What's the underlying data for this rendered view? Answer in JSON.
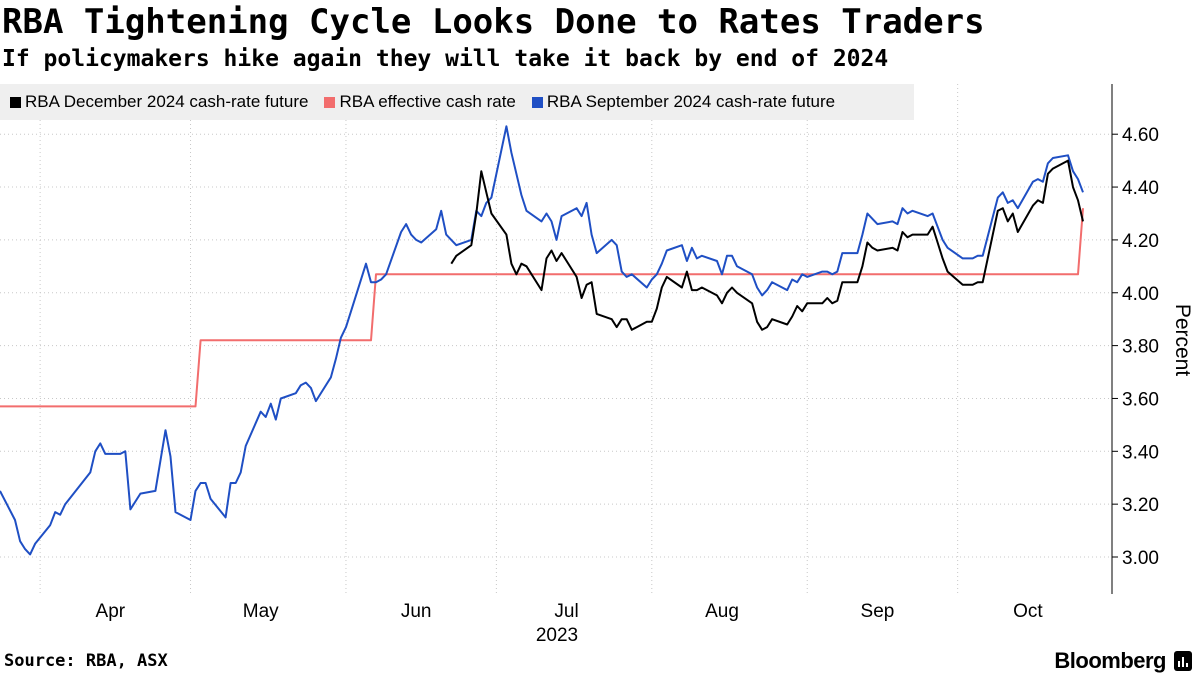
{
  "header": {
    "title": "RBA Tightening Cycle Looks Done to Rates Traders",
    "subtitle": "If policymakers hike again they will take it back by end of 2024"
  },
  "footer": {
    "source": "Source: RBA, ASX",
    "brand": "Bloomberg"
  },
  "colors": {
    "dec2024": "#000000",
    "effective": "#f26d6d",
    "sep2024": "#1f4fc4",
    "grid": "#c8c8c8",
    "legend_bg": "#efefef"
  },
  "chart_data": {
    "type": "line",
    "title": "RBA Tightening Cycle Looks Done to Rates Traders",
    "subtitle": "If policymakers hike again they will take it back by end of 2024",
    "xlabel": "2023",
    "ylabel": "Percent",
    "ylim": [
      2.86,
      4.79
    ],
    "yticks": [
      "3.00",
      "3.20",
      "3.40",
      "3.60",
      "3.80",
      "4.00",
      "4.20",
      "4.40",
      "4.60"
    ],
    "ytick_values": [
      3.0,
      3.2,
      3.4,
      3.6,
      3.8,
      4.0,
      4.2,
      4.4,
      4.6
    ],
    "x_start": "2023-03-24",
    "x_end": "2023-10-26",
    "month_labels": [
      {
        "label": "Apr",
        "date": "2023-04-15"
      },
      {
        "label": "May",
        "date": "2023-05-15"
      },
      {
        "label": "Jun",
        "date": "2023-06-15"
      },
      {
        "label": "Jul",
        "date": "2023-07-15"
      },
      {
        "label": "Aug",
        "date": "2023-08-15"
      },
      {
        "label": "Sep",
        "date": "2023-09-15"
      },
      {
        "label": "Oct",
        "date": "2023-10-15"
      }
    ],
    "month_boundaries": [
      "2023-04-01",
      "2023-05-01",
      "2023-06-01",
      "2023-07-01",
      "2023-08-01",
      "2023-09-01",
      "2023-10-01"
    ],
    "year_label": "2023",
    "grid": true,
    "legend_position": "top",
    "series": [
      {
        "key": "dec2024",
        "name": "RBA December 2024 cash-rate future",
        "points": [
          [
            "2023-06-22",
            4.11
          ],
          [
            "2023-06-23",
            4.14
          ],
          [
            "2023-06-26",
            4.18
          ],
          [
            "2023-06-27",
            4.3
          ],
          [
            "2023-06-28",
            4.46
          ],
          [
            "2023-06-29",
            4.38
          ],
          [
            "2023-06-30",
            4.3
          ],
          [
            "2023-07-03",
            4.22
          ],
          [
            "2023-07-04",
            4.11
          ],
          [
            "2023-07-05",
            4.07
          ],
          [
            "2023-07-06",
            4.11
          ],
          [
            "2023-07-07",
            4.1
          ],
          [
            "2023-07-10",
            4.01
          ],
          [
            "2023-07-11",
            4.13
          ],
          [
            "2023-07-12",
            4.16
          ],
          [
            "2023-07-13",
            4.12
          ],
          [
            "2023-07-14",
            4.15
          ],
          [
            "2023-07-17",
            4.06
          ],
          [
            "2023-07-18",
            3.98
          ],
          [
            "2023-07-19",
            4.03
          ],
          [
            "2023-07-20",
            4.04
          ],
          [
            "2023-07-21",
            3.92
          ],
          [
            "2023-07-24",
            3.9
          ],
          [
            "2023-07-25",
            3.87
          ],
          [
            "2023-07-26",
            3.9
          ],
          [
            "2023-07-27",
            3.9
          ],
          [
            "2023-07-28",
            3.86
          ],
          [
            "2023-07-31",
            3.89
          ],
          [
            "2023-08-01",
            3.89
          ],
          [
            "2023-08-02",
            3.94
          ],
          [
            "2023-08-03",
            4.02
          ],
          [
            "2023-08-04",
            4.06
          ],
          [
            "2023-08-07",
            4.02
          ],
          [
            "2023-08-08",
            4.08
          ],
          [
            "2023-08-09",
            4.01
          ],
          [
            "2023-08-10",
            4.01
          ],
          [
            "2023-08-11",
            4.02
          ],
          [
            "2023-08-14",
            3.99
          ],
          [
            "2023-08-15",
            3.96
          ],
          [
            "2023-08-16",
            4.0
          ],
          [
            "2023-08-17",
            4.02
          ],
          [
            "2023-08-18",
            4.0
          ],
          [
            "2023-08-21",
            3.96
          ],
          [
            "2023-08-22",
            3.89
          ],
          [
            "2023-08-23",
            3.86
          ],
          [
            "2023-08-24",
            3.87
          ],
          [
            "2023-08-25",
            3.9
          ],
          [
            "2023-08-28",
            3.88
          ],
          [
            "2023-08-29",
            3.91
          ],
          [
            "2023-08-30",
            3.95
          ],
          [
            "2023-08-31",
            3.93
          ],
          [
            "2023-09-01",
            3.96
          ],
          [
            "2023-09-04",
            3.96
          ],
          [
            "2023-09-05",
            3.98
          ],
          [
            "2023-09-06",
            3.96
          ],
          [
            "2023-09-07",
            3.97
          ],
          [
            "2023-09-08",
            4.04
          ],
          [
            "2023-09-11",
            4.04
          ],
          [
            "2023-09-12",
            4.1
          ],
          [
            "2023-09-13",
            4.19
          ],
          [
            "2023-09-14",
            4.17
          ],
          [
            "2023-09-15",
            4.16
          ],
          [
            "2023-09-18",
            4.17
          ],
          [
            "2023-09-19",
            4.16
          ],
          [
            "2023-09-20",
            4.23
          ],
          [
            "2023-09-21",
            4.21
          ],
          [
            "2023-09-22",
            4.22
          ],
          [
            "2023-09-25",
            4.22
          ],
          [
            "2023-09-26",
            4.25
          ],
          [
            "2023-09-27",
            4.19
          ],
          [
            "2023-09-28",
            4.13
          ],
          [
            "2023-09-29",
            4.08
          ],
          [
            "2023-10-02",
            4.03
          ],
          [
            "2023-10-03",
            4.03
          ],
          [
            "2023-10-04",
            4.03
          ],
          [
            "2023-10-05",
            4.04
          ],
          [
            "2023-10-06",
            4.04
          ],
          [
            "2023-10-09",
            4.31
          ],
          [
            "2023-10-10",
            4.32
          ],
          [
            "2023-10-11",
            4.27
          ],
          [
            "2023-10-12",
            4.3
          ],
          [
            "2023-10-13",
            4.23
          ],
          [
            "2023-10-16",
            4.33
          ],
          [
            "2023-10-17",
            4.35
          ],
          [
            "2023-10-18",
            4.34
          ],
          [
            "2023-10-19",
            4.45
          ],
          [
            "2023-10-20",
            4.47
          ],
          [
            "2023-10-23",
            4.5
          ],
          [
            "2023-10-24",
            4.4
          ],
          [
            "2023-10-25",
            4.35
          ],
          [
            "2023-10-26",
            4.27
          ]
        ]
      },
      {
        "key": "effective",
        "name": "RBA effective cash rate",
        "points": [
          [
            "2023-03-24",
            3.57
          ],
          [
            "2023-05-02",
            3.57
          ],
          [
            "2023-05-03",
            3.82
          ],
          [
            "2023-06-06",
            3.82
          ],
          [
            "2023-06-07",
            4.07
          ],
          [
            "2023-10-25",
            4.07
          ],
          [
            "2023-10-26",
            4.32
          ]
        ]
      },
      {
        "key": "sep2024",
        "name": "RBA September 2024 cash-rate future",
        "points": [
          [
            "2023-03-24",
            3.25
          ],
          [
            "2023-03-27",
            3.14
          ],
          [
            "2023-03-28",
            3.06
          ],
          [
            "2023-03-29",
            3.03
          ],
          [
            "2023-03-30",
            3.01
          ],
          [
            "2023-03-31",
            3.05
          ],
          [
            "2023-04-03",
            3.12
          ],
          [
            "2023-04-04",
            3.17
          ],
          [
            "2023-04-05",
            3.16
          ],
          [
            "2023-04-06",
            3.2
          ],
          [
            "2023-04-11",
            3.32
          ],
          [
            "2023-04-12",
            3.4
          ],
          [
            "2023-04-13",
            3.43
          ],
          [
            "2023-04-14",
            3.39
          ],
          [
            "2023-04-17",
            3.39
          ],
          [
            "2023-04-18",
            3.4
          ],
          [
            "2023-04-19",
            3.18
          ],
          [
            "2023-04-20",
            3.21
          ],
          [
            "2023-04-21",
            3.24
          ],
          [
            "2023-04-24",
            3.25
          ],
          [
            "2023-04-26",
            3.48
          ],
          [
            "2023-04-27",
            3.38
          ],
          [
            "2023-04-28",
            3.17
          ],
          [
            "2023-05-01",
            3.14
          ],
          [
            "2023-05-02",
            3.25
          ],
          [
            "2023-05-03",
            3.28
          ],
          [
            "2023-05-04",
            3.28
          ],
          [
            "2023-05-05",
            3.22
          ],
          [
            "2023-05-08",
            3.15
          ],
          [
            "2023-05-09",
            3.28
          ],
          [
            "2023-05-10",
            3.28
          ],
          [
            "2023-05-11",
            3.32
          ],
          [
            "2023-05-12",
            3.42
          ],
          [
            "2023-05-15",
            3.55
          ],
          [
            "2023-05-16",
            3.53
          ],
          [
            "2023-05-17",
            3.58
          ],
          [
            "2023-05-18",
            3.52
          ],
          [
            "2023-05-19",
            3.6
          ],
          [
            "2023-05-22",
            3.62
          ],
          [
            "2023-05-23",
            3.65
          ],
          [
            "2023-05-24",
            3.66
          ],
          [
            "2023-05-25",
            3.64
          ],
          [
            "2023-05-26",
            3.59
          ],
          [
            "2023-05-29",
            3.68
          ],
          [
            "2023-05-30",
            3.75
          ],
          [
            "2023-05-31",
            3.83
          ],
          [
            "2023-06-01",
            3.87
          ],
          [
            "2023-06-02",
            3.93
          ],
          [
            "2023-06-05",
            4.11
          ],
          [
            "2023-06-06",
            4.04
          ],
          [
            "2023-06-07",
            4.04
          ],
          [
            "2023-06-08",
            4.05
          ],
          [
            "2023-06-09",
            4.07
          ],
          [
            "2023-06-12",
            4.23
          ],
          [
            "2023-06-13",
            4.26
          ],
          [
            "2023-06-14",
            4.22
          ],
          [
            "2023-06-15",
            4.2
          ],
          [
            "2023-06-16",
            4.19
          ],
          [
            "2023-06-19",
            4.24
          ],
          [
            "2023-06-20",
            4.31
          ],
          [
            "2023-06-21",
            4.22
          ],
          [
            "2023-06-22",
            4.2
          ],
          [
            "2023-06-23",
            4.18
          ],
          [
            "2023-06-26",
            4.2
          ],
          [
            "2023-06-27",
            4.31
          ],
          [
            "2023-06-28",
            4.29
          ],
          [
            "2023-06-29",
            4.34
          ],
          [
            "2023-06-30",
            4.36
          ],
          [
            "2023-07-03",
            4.63
          ],
          [
            "2023-07-04",
            4.53
          ],
          [
            "2023-07-05",
            4.45
          ],
          [
            "2023-07-06",
            4.37
          ],
          [
            "2023-07-07",
            4.31
          ],
          [
            "2023-07-10",
            4.27
          ],
          [
            "2023-07-11",
            4.3
          ],
          [
            "2023-07-12",
            4.27
          ],
          [
            "2023-07-13",
            4.2
          ],
          [
            "2023-07-14",
            4.29
          ],
          [
            "2023-07-17",
            4.32
          ],
          [
            "2023-07-18",
            4.29
          ],
          [
            "2023-07-19",
            4.34
          ],
          [
            "2023-07-20",
            4.22
          ],
          [
            "2023-07-21",
            4.15
          ],
          [
            "2023-07-24",
            4.2
          ],
          [
            "2023-07-25",
            4.18
          ],
          [
            "2023-07-26",
            4.08
          ],
          [
            "2023-07-27",
            4.06
          ],
          [
            "2023-07-28",
            4.07
          ],
          [
            "2023-07-31",
            4.02
          ],
          [
            "2023-08-01",
            4.05
          ],
          [
            "2023-08-02",
            4.07
          ],
          [
            "2023-08-03",
            4.11
          ],
          [
            "2023-08-04",
            4.16
          ],
          [
            "2023-08-07",
            4.18
          ],
          [
            "2023-08-08",
            4.12
          ],
          [
            "2023-08-09",
            4.17
          ],
          [
            "2023-08-10",
            4.13
          ],
          [
            "2023-08-11",
            4.14
          ],
          [
            "2023-08-14",
            4.12
          ],
          [
            "2023-08-15",
            4.07
          ],
          [
            "2023-08-16",
            4.14
          ],
          [
            "2023-08-17",
            4.14
          ],
          [
            "2023-08-18",
            4.1
          ],
          [
            "2023-08-21",
            4.07
          ],
          [
            "2023-08-22",
            4.02
          ],
          [
            "2023-08-23",
            3.99
          ],
          [
            "2023-08-24",
            4.01
          ],
          [
            "2023-08-25",
            4.04
          ],
          [
            "2023-08-28",
            4.01
          ],
          [
            "2023-08-29",
            4.05
          ],
          [
            "2023-08-30",
            4.04
          ],
          [
            "2023-08-31",
            4.07
          ],
          [
            "2023-09-01",
            4.06
          ],
          [
            "2023-09-04",
            4.08
          ],
          [
            "2023-09-05",
            4.08
          ],
          [
            "2023-09-06",
            4.07
          ],
          [
            "2023-09-07",
            4.08
          ],
          [
            "2023-09-08",
            4.15
          ],
          [
            "2023-09-11",
            4.15
          ],
          [
            "2023-09-12",
            4.22
          ],
          [
            "2023-09-13",
            4.3
          ],
          [
            "2023-09-14",
            4.28
          ],
          [
            "2023-09-15",
            4.26
          ],
          [
            "2023-09-18",
            4.27
          ],
          [
            "2023-09-19",
            4.26
          ],
          [
            "2023-09-20",
            4.32
          ],
          [
            "2023-09-21",
            4.3
          ],
          [
            "2023-09-22",
            4.31
          ],
          [
            "2023-09-25",
            4.29
          ],
          [
            "2023-09-26",
            4.3
          ],
          [
            "2023-09-27",
            4.25
          ],
          [
            "2023-09-28",
            4.2
          ],
          [
            "2023-09-29",
            4.17
          ],
          [
            "2023-10-02",
            4.13
          ],
          [
            "2023-10-03",
            4.13
          ],
          [
            "2023-10-04",
            4.13
          ],
          [
            "2023-10-05",
            4.14
          ],
          [
            "2023-10-06",
            4.14
          ],
          [
            "2023-10-09",
            4.36
          ],
          [
            "2023-10-10",
            4.38
          ],
          [
            "2023-10-11",
            4.34
          ],
          [
            "2023-10-12",
            4.35
          ],
          [
            "2023-10-13",
            4.32
          ],
          [
            "2023-10-16",
            4.42
          ],
          [
            "2023-10-17",
            4.43
          ],
          [
            "2023-10-18",
            4.42
          ],
          [
            "2023-10-19",
            4.49
          ],
          [
            "2023-10-20",
            4.51
          ],
          [
            "2023-10-23",
            4.52
          ],
          [
            "2023-10-24",
            4.46
          ],
          [
            "2023-10-25",
            4.43
          ],
          [
            "2023-10-26",
            4.38
          ]
        ]
      }
    ]
  }
}
